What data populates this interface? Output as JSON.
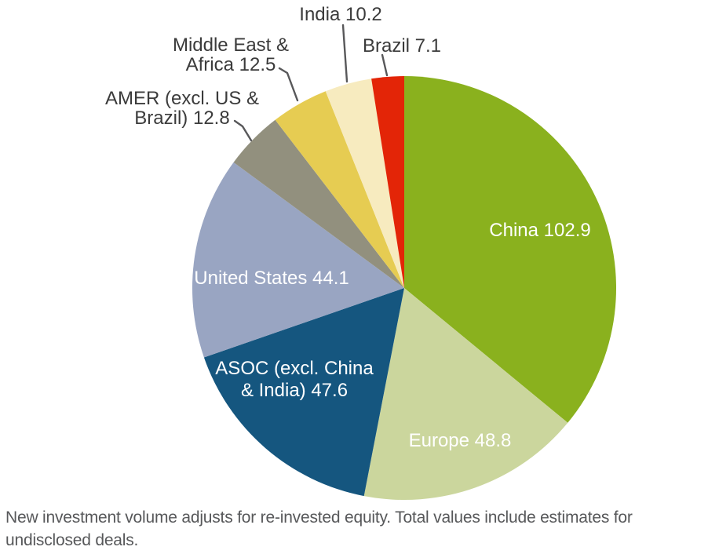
{
  "chart_data": {
    "type": "pie",
    "title": "",
    "legend": "none",
    "direction": "clockwise",
    "start_angle_deg": 0,
    "total": 286.0,
    "slices": [
      {
        "id": "china",
        "label": "China",
        "value": 102.9,
        "color": "#8AB11E",
        "display": [
          "China 102.9"
        ],
        "label_position": "inside"
      },
      {
        "id": "europe",
        "label": "Europe",
        "value": 48.8,
        "color": "#CBD69D",
        "display": [
          "Europe 48.8"
        ],
        "label_position": "inside"
      },
      {
        "id": "asoc",
        "label": "ASOC (excl. China & India)",
        "value": 47.6,
        "color": "#15567F",
        "display": [
          "ASOC (excl. China",
          "& India) 47.6"
        ],
        "label_position": "inside"
      },
      {
        "id": "united-states",
        "label": "United States",
        "value": 44.1,
        "color": "#99A5C2",
        "display": [
          "United States 44.1"
        ],
        "label_position": "inside"
      },
      {
        "id": "amer",
        "label": "AMER (excl. US & Brazil)",
        "value": 12.8,
        "color": "#92907E",
        "display": [
          "AMER (excl. US &",
          "Brazil) 12.8"
        ],
        "label_position": "outside"
      },
      {
        "id": "mea",
        "label": "Middle East & Africa",
        "value": 12.5,
        "color": "#E6CC52",
        "display": [
          "Middle East &",
          "Africa 12.5"
        ],
        "label_position": "outside"
      },
      {
        "id": "india",
        "label": "India",
        "value": 10.2,
        "color": "#F7EBBF",
        "display": [
          "India 10.2"
        ],
        "label_position": "outside"
      },
      {
        "id": "brazil",
        "label": "Brazil",
        "value": 7.1,
        "color": "#E32507",
        "display": [
          "Brazil 7.1"
        ],
        "label_position": "outside"
      }
    ],
    "label_text_colors": {
      "inside": "#FFFFFF",
      "outside": "#3B3B3B"
    },
    "leader_line_color": "#58585A"
  },
  "footnote": {
    "text": "New investment volume adjusts for re-invested equity. Total values include estimates for undisclosed deals."
  }
}
